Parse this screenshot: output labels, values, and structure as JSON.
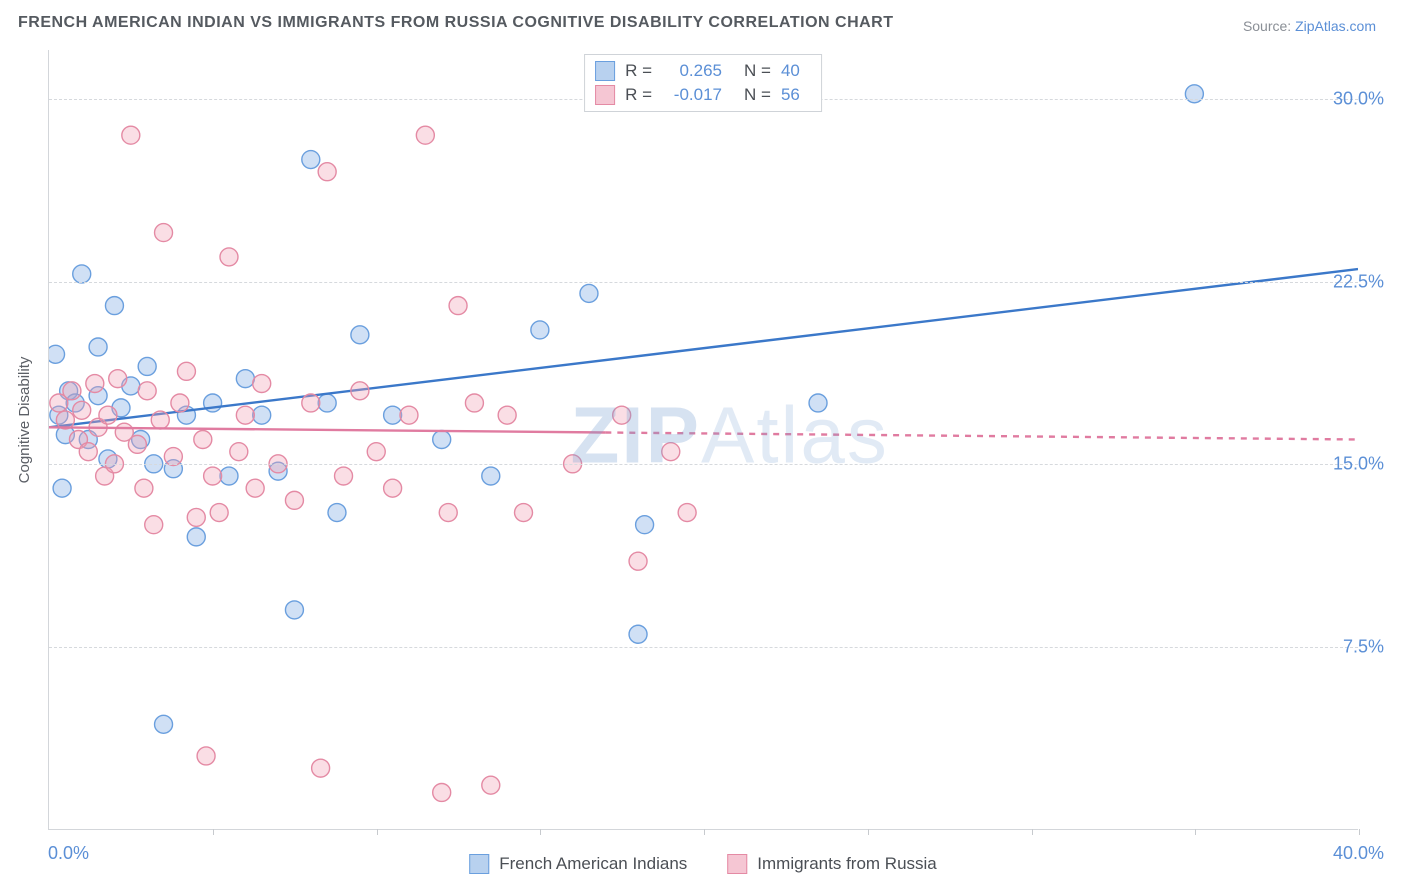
{
  "title": "FRENCH AMERICAN INDIAN VS IMMIGRANTS FROM RUSSIA COGNITIVE DISABILITY CORRELATION CHART",
  "source_prefix": "Source: ",
  "source_link": "ZipAtlas.com",
  "ylabel": "Cognitive Disability",
  "watermark_bold": "ZIP",
  "watermark_rest": "Atlas",
  "chart": {
    "type": "scatter",
    "xlim": [
      0,
      40
    ],
    "ylim": [
      0,
      32
    ],
    "xtick_positions": [
      5,
      10,
      15,
      20,
      25,
      30,
      35,
      40
    ],
    "yticks": [
      7.5,
      15.0,
      22.5,
      30.0
    ],
    "ytick_labels": [
      "7.5%",
      "15.0%",
      "22.5%",
      "30.0%"
    ],
    "xaxis_min_label": "0.0%",
    "xaxis_max_label": "40.0%",
    "grid_color": "#d6d9dd",
    "axis_color": "#d3d6da",
    "background": "#ffffff",
    "marker_radius": 9,
    "marker_stroke_width": 1.4,
    "trend_line_width": 2.4,
    "series": [
      {
        "key": "blue",
        "label": "French American Indians",
        "fill": "rgba(120,165,225,0.35)",
        "stroke": "#6a9fde",
        "swatch_fill": "#b8d1ef",
        "swatch_stroke": "#6a9fde",
        "R": "0.265",
        "N": "40",
        "trend": {
          "x1": 0,
          "y1": 16.5,
          "x2": 40,
          "y2": 23.0,
          "dashed": false,
          "stroke": "#3b78c9"
        },
        "points": [
          [
            0.2,
            19.5
          ],
          [
            0.3,
            17.0
          ],
          [
            0.5,
            16.2
          ],
          [
            0.6,
            18.0
          ],
          [
            0.8,
            17.5
          ],
          [
            1.0,
            22.8
          ],
          [
            1.2,
            16.0
          ],
          [
            1.5,
            17.8
          ],
          [
            1.5,
            19.8
          ],
          [
            1.8,
            15.2
          ],
          [
            2.0,
            21.5
          ],
          [
            2.2,
            17.3
          ],
          [
            2.5,
            18.2
          ],
          [
            2.8,
            16.0
          ],
          [
            3.0,
            19.0
          ],
          [
            3.2,
            15.0
          ],
          [
            3.5,
            4.3
          ],
          [
            3.8,
            14.8
          ],
          [
            4.2,
            17.0
          ],
          [
            4.5,
            12.0
          ],
          [
            5.0,
            17.5
          ],
          [
            5.5,
            14.5
          ],
          [
            6.0,
            18.5
          ],
          [
            6.5,
            17.0
          ],
          [
            7.0,
            14.7
          ],
          [
            7.5,
            9.0
          ],
          [
            8.0,
            27.5
          ],
          [
            8.5,
            17.5
          ],
          [
            8.8,
            13.0
          ],
          [
            9.5,
            20.3
          ],
          [
            10.5,
            17.0
          ],
          [
            12.0,
            16.0
          ],
          [
            13.5,
            14.5
          ],
          [
            15.0,
            20.5
          ],
          [
            16.5,
            22.0
          ],
          [
            18.0,
            8.0
          ],
          [
            18.2,
            12.5
          ],
          [
            23.5,
            17.5
          ],
          [
            35.0,
            30.2
          ],
          [
            0.4,
            14.0
          ]
        ]
      },
      {
        "key": "pink",
        "label": "Immigrants from Russia",
        "fill": "rgba(240,160,180,0.35)",
        "stroke": "#e48aa4",
        "swatch_fill": "#f5c6d3",
        "swatch_stroke": "#e48aa4",
        "R": "-0.017",
        "N": "56",
        "trend": {
          "x1": 0,
          "y1": 16.5,
          "x2": 40,
          "y2": 16.0,
          "dashed_from": 17.0,
          "stroke": "#e07ba0"
        },
        "points": [
          [
            0.3,
            17.5
          ],
          [
            0.5,
            16.8
          ],
          [
            0.7,
            18.0
          ],
          [
            0.9,
            16.0
          ],
          [
            1.0,
            17.2
          ],
          [
            1.2,
            15.5
          ],
          [
            1.4,
            18.3
          ],
          [
            1.5,
            16.5
          ],
          [
            1.7,
            14.5
          ],
          [
            1.8,
            17.0
          ],
          [
            2.0,
            15.0
          ],
          [
            2.1,
            18.5
          ],
          [
            2.3,
            16.3
          ],
          [
            2.5,
            28.5
          ],
          [
            2.7,
            15.8
          ],
          [
            2.9,
            14.0
          ],
          [
            3.0,
            18.0
          ],
          [
            3.2,
            12.5
          ],
          [
            3.4,
            16.8
          ],
          [
            3.5,
            24.5
          ],
          [
            3.8,
            15.3
          ],
          [
            4.0,
            17.5
          ],
          [
            4.2,
            18.8
          ],
          [
            4.5,
            12.8
          ],
          [
            4.7,
            16.0
          ],
          [
            4.8,
            3.0
          ],
          [
            5.0,
            14.5
          ],
          [
            5.2,
            13.0
          ],
          [
            5.5,
            23.5
          ],
          [
            5.8,
            15.5
          ],
          [
            6.0,
            17.0
          ],
          [
            6.3,
            14.0
          ],
          [
            6.5,
            18.3
          ],
          [
            7.0,
            15.0
          ],
          [
            7.5,
            13.5
          ],
          [
            8.0,
            17.5
          ],
          [
            8.3,
            2.5
          ],
          [
            8.5,
            27.0
          ],
          [
            9.0,
            14.5
          ],
          [
            9.5,
            18.0
          ],
          [
            10.0,
            15.5
          ],
          [
            10.5,
            14.0
          ],
          [
            11.0,
            17.0
          ],
          [
            11.5,
            28.5
          ],
          [
            12.0,
            1.5
          ],
          [
            12.2,
            13.0
          ],
          [
            12.5,
            21.5
          ],
          [
            13.0,
            17.5
          ],
          [
            13.5,
            1.8
          ],
          [
            14.0,
            17.0
          ],
          [
            14.5,
            13.0
          ],
          [
            16.0,
            15.0
          ],
          [
            17.5,
            17.0
          ],
          [
            18.0,
            11.0
          ],
          [
            19.0,
            15.5
          ],
          [
            19.5,
            13.0
          ]
        ]
      }
    ]
  },
  "legend_labels": {
    "R": "R =",
    "N": "N ="
  }
}
